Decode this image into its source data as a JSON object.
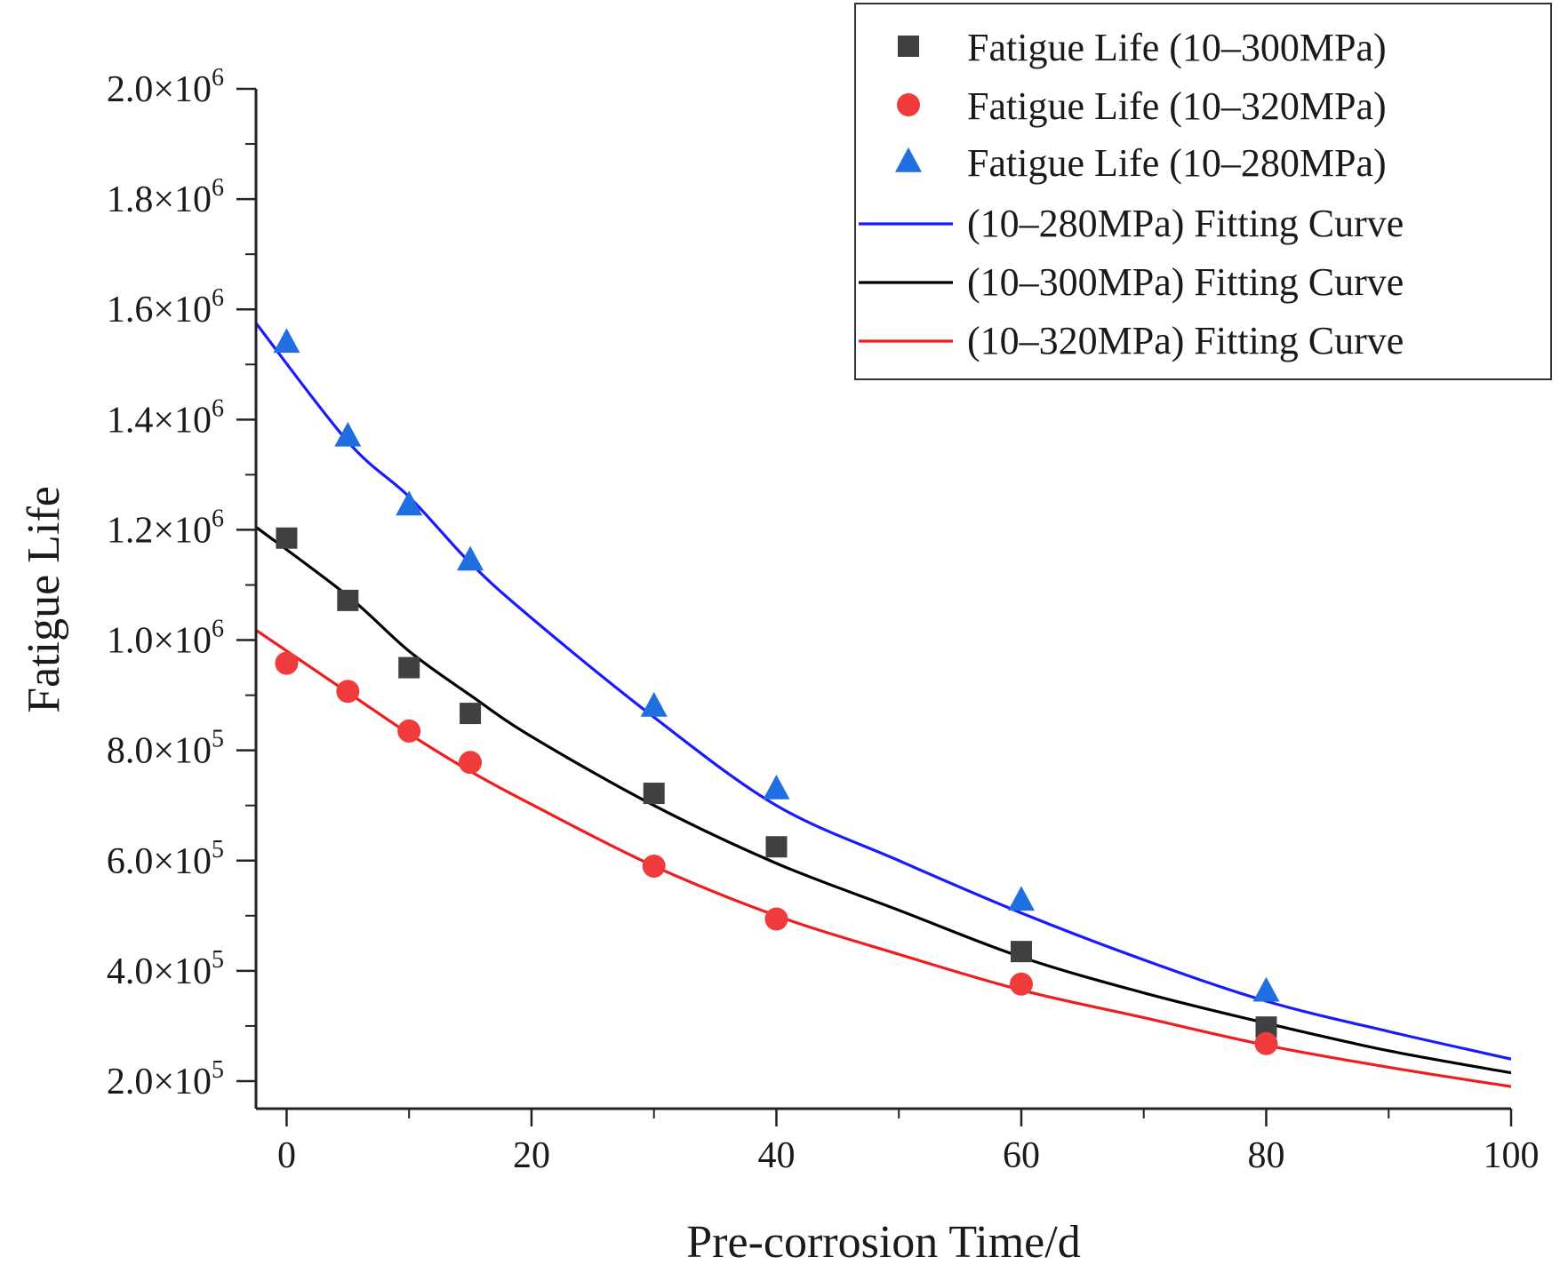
{
  "chart_data": {
    "type": "scatter",
    "title": "",
    "xlabel": "Pre-corrosion Time/d",
    "ylabel": "Fatigue Life",
    "xlim": [
      -2.5,
      100
    ],
    "ylim": [
      150000,
      2000000
    ],
    "grid": false,
    "legend_position": "top-right",
    "x_ticks": [
      {
        "value": 0,
        "label": "0"
      },
      {
        "value": 20,
        "label": "20"
      },
      {
        "value": 40,
        "label": "40"
      },
      {
        "value": 60,
        "label": "60"
      },
      {
        "value": 80,
        "label": "80"
      },
      {
        "value": 100,
        "label": "100"
      }
    ],
    "x_minor_ticks": [
      10,
      30,
      50,
      70,
      90
    ],
    "y_ticks": [
      {
        "value": 200000,
        "mant": "2.0×10",
        "exp": "5"
      },
      {
        "value": 400000,
        "mant": "4.0×10",
        "exp": "5"
      },
      {
        "value": 600000,
        "mant": "6.0×10",
        "exp": "5"
      },
      {
        "value": 800000,
        "mant": "8.0×10",
        "exp": "5"
      },
      {
        "value": 1000000,
        "mant": "1.0×10",
        "exp": "6"
      },
      {
        "value": 1200000,
        "mant": "1.2×10",
        "exp": "6"
      },
      {
        "value": 1400000,
        "mant": "1.4×10",
        "exp": "6"
      },
      {
        "value": 1600000,
        "mant": "1.6×10",
        "exp": "6"
      },
      {
        "value": 1800000,
        "mant": "1.8×10",
        "exp": "6"
      },
      {
        "value": 2000000,
        "mant": "2.0×10",
        "exp": "6"
      }
    ],
    "y_minor_ticks": [
      300000,
      500000,
      700000,
      900000,
      1100000,
      1300000,
      1500000,
      1700000,
      1900000
    ],
    "scatter_series": [
      {
        "name": "Fatigue Life (10–300MPa)",
        "marker": "square",
        "color": "#404040",
        "x": [
          0,
          5,
          10,
          15,
          30,
          40,
          60,
          80
        ],
        "y": [
          1185000,
          1072000,
          950000,
          867000,
          722000,
          625000,
          435000,
          298000
        ]
      },
      {
        "name": "Fatigue Life (10–320MPa)",
        "marker": "circle",
        "color": "#ef3b3b",
        "x": [
          0,
          5,
          10,
          15,
          30,
          40,
          60,
          80
        ],
        "y": [
          958000,
          907000,
          835000,
          778000,
          590000,
          494000,
          376000,
          268000
        ]
      },
      {
        "name": "Fatigue Life (10–280MPa)",
        "marker": "triangle",
        "color": "#1f6fe0",
        "x": [
          0,
          5,
          10,
          15,
          30,
          40,
          60,
          80
        ],
        "y": [
          1540000,
          1370000,
          1245000,
          1145000,
          880000,
          730000,
          528000,
          363000
        ]
      }
    ],
    "line_series": [
      {
        "name": "(10–280MPa) Fitting Curve",
        "color": "#1a1aff",
        "x": [
          -2.5,
          5,
          10,
          15,
          20,
          30,
          40,
          50,
          60,
          70,
          80,
          90,
          100
        ],
        "y": [
          1575000,
          1360000,
          1260000,
          1140000,
          1040000,
          860000,
          700000,
          600000,
          505000,
          420000,
          345000,
          290000,
          240000
        ]
      },
      {
        "name": "(10–300MPa) Fitting Curve",
        "color": "#000000",
        "x": [
          -2.5,
          5,
          10,
          15,
          20,
          30,
          40,
          50,
          60,
          70,
          80,
          90,
          100
        ],
        "y": [
          1205000,
          1080000,
          980000,
          900000,
          825000,
          700000,
          595000,
          510000,
          425000,
          360000,
          305000,
          255000,
          215000
        ]
      },
      {
        "name": "(10–320MPa) Fitting Curve",
        "color": "#ef1d1d",
        "x": [
          -2.5,
          5,
          10,
          15,
          20,
          30,
          40,
          50,
          60,
          70,
          80,
          90,
          100
        ],
        "y": [
          1018000,
          905000,
          830000,
          762000,
          702000,
          590000,
          500000,
          430000,
          365000,
          315000,
          265000,
          225000,
          190000
        ]
      }
    ]
  }
}
